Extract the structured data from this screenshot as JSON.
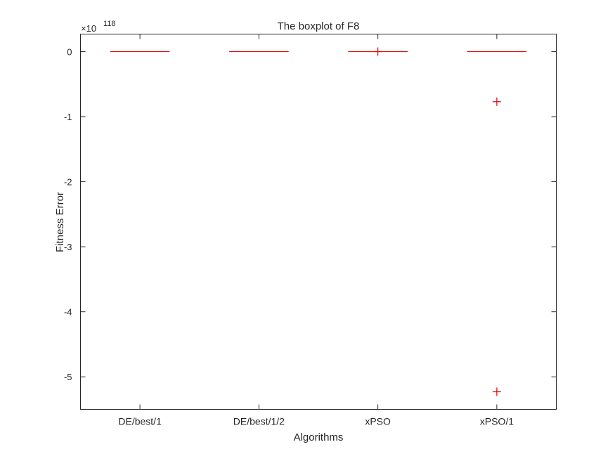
{
  "chart_data": {
    "type": "box",
    "title": "The boxplot of F8",
    "xlabel": "Algorithms",
    "ylabel": "Fitness Error",
    "y_exponent_label": "×10",
    "y_exponent": "118",
    "y_scale": 1e+118,
    "ylim": [
      -5.5,
      0.27
    ],
    "yticks": [
      0,
      -1,
      -2,
      -3,
      -4,
      -5
    ],
    "categories": [
      "DE/best/1",
      "DE/best/1/2",
      "xPSO",
      "xPSO/1"
    ],
    "series": [
      {
        "category": "DE/best/1",
        "median": 0,
        "outliers": []
      },
      {
        "category": "DE/best/1/2",
        "median": 0,
        "outliers": []
      },
      {
        "category": "xPSO",
        "median": 0,
        "outliers": [
          0
        ]
      },
      {
        "category": "xPSO/1",
        "median": 0,
        "outliers": [
          -0.77,
          -5.23
        ]
      }
    ],
    "grid": false,
    "legend": "none",
    "colors": {
      "median": "#e00000",
      "outlier": "#e00000",
      "axis": "#262626"
    }
  }
}
